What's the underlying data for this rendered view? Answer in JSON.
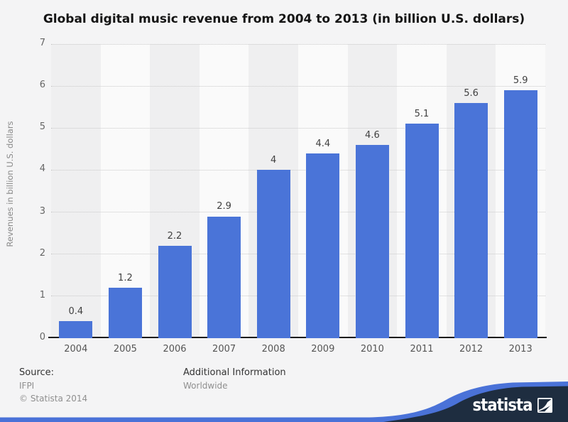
{
  "title": "Global digital music revenue from 2004 to 2013 (in billion U.S. dollars)",
  "chart_data": {
    "type": "bar",
    "title": "Global digital music revenue from 2004 to 2013 (in billion U.S. dollars)",
    "categories": [
      "2004",
      "2005",
      "2006",
      "2007",
      "2008",
      "2009",
      "2010",
      "2011",
      "2012",
      "2013"
    ],
    "values": [
      0.4,
      1.2,
      2.2,
      2.9,
      4,
      4.4,
      4.6,
      5.1,
      5.6,
      5.9
    ],
    "value_labels": [
      "0.4",
      "1.2",
      "2.2",
      "2.9",
      "4",
      "4.4",
      "4.6",
      "5.1",
      "5.6",
      "5.9"
    ],
    "xlabel": "",
    "ylabel": "Revenues in billion U.S. dollars",
    "ylim": [
      0,
      7
    ],
    "ytick_step": 1,
    "grid": "horizontal-dotted",
    "legend": null,
    "bar_color": "#4a74d8",
    "band_colors": [
      "#efeff0",
      "#fafafa"
    ]
  },
  "footer": {
    "source_label": "Source:",
    "source_value": "IFPI",
    "copyright": "© Statista 2014",
    "additional_label": "Additional Information",
    "additional_value": "Worldwide"
  },
  "branding": {
    "logo_text": "statista",
    "navy": "#1e2d40",
    "blue": "#4a72d8"
  }
}
